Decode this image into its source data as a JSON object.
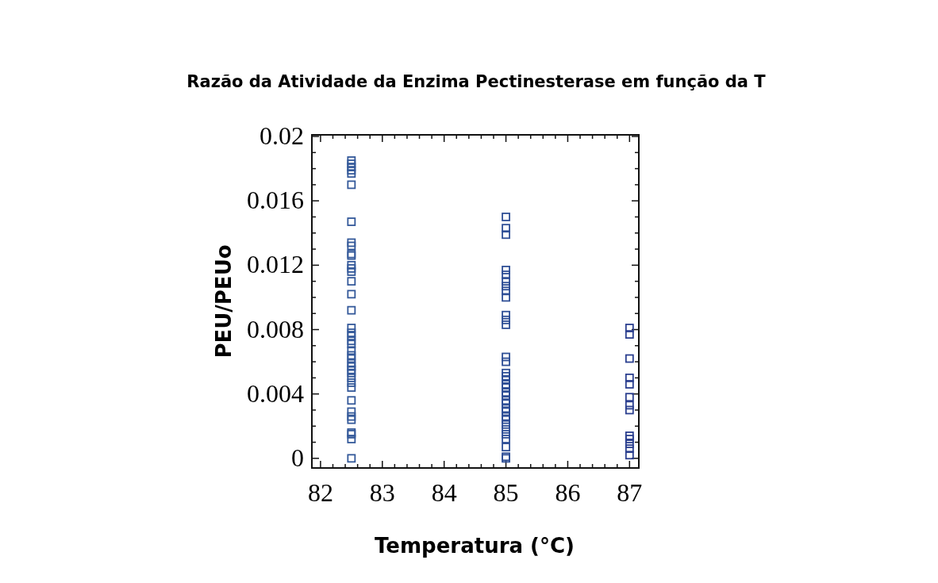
{
  "chart_data": {
    "type": "scatter",
    "title": "Razão da Atividade da Enzima Pectinesterase em função da T",
    "xlabel": "Temperatura (°C)",
    "ylabel": "PEU/PEUo",
    "marker": "square",
    "grid": false,
    "xlim": [
      81.86,
      87.15
    ],
    "ylim": [
      -0.0006,
      0.0201
    ],
    "xticks": [
      82,
      {
        "value": 82.2,
        "label": null
      },
      {
        "value": 82.4,
        "label": null
      },
      {
        "value": 82.6,
        "label": null
      },
      {
        "value": 82.8,
        "label": null
      },
      83,
      {
        "value": 83.2,
        "label": null
      },
      {
        "value": 83.4,
        "label": null
      },
      {
        "value": 83.6,
        "label": null
      },
      {
        "value": 83.8,
        "label": null
      },
      84,
      {
        "value": 84.2,
        "label": null
      },
      {
        "value": 84.4,
        "label": null
      },
      {
        "value": 84.6,
        "label": null
      },
      {
        "value": 84.8,
        "label": null
      },
      85,
      {
        "value": 85.2,
        "label": null
      },
      {
        "value": 85.4,
        "label": null
      },
      {
        "value": 85.6,
        "label": null
      },
      {
        "value": 85.8,
        "label": null
      },
      86,
      {
        "value": 86.2,
        "label": null
      },
      {
        "value": 86.4,
        "label": null
      },
      {
        "value": 86.6,
        "label": null
      },
      {
        "value": 86.8,
        "label": null
      },
      87
    ],
    "yticks": [
      0,
      {
        "value": 0.001,
        "label": null
      },
      {
        "value": 0.002,
        "label": null
      },
      {
        "value": 0.003,
        "label": null
      },
      0.004,
      {
        "value": 0.005,
        "label": null
      },
      {
        "value": 0.006,
        "label": null
      },
      {
        "value": 0.007,
        "label": null
      },
      0.008,
      {
        "value": 0.009,
        "label": null
      },
      {
        "value": 0.01,
        "label": null
      },
      {
        "value": 0.011,
        "label": null
      },
      0.012,
      {
        "value": 0.013,
        "label": null
      },
      {
        "value": 0.014,
        "label": null
      },
      {
        "value": 0.015,
        "label": null
      },
      0.016,
      {
        "value": 0.017,
        "label": null
      },
      {
        "value": 0.018,
        "label": null
      },
      {
        "value": 0.019,
        "label": null
      },
      0.02
    ],
    "series": [
      {
        "color": "#34599a",
        "x": [
          82.5,
          82.5,
          82.5,
          82.5,
          82.5,
          82.5,
          82.5,
          82.5,
          82.5,
          82.5,
          82.5,
          82.5,
          82.5,
          82.5,
          82.5,
          82.5,
          82.5,
          82.5,
          82.5,
          82.5,
          82.5,
          82.5,
          82.5,
          82.5,
          82.5,
          82.5,
          82.5,
          82.5,
          82.5,
          82.5,
          82.5,
          82.5,
          82.5,
          82.5,
          82.5,
          82.5,
          82.5,
          82.5,
          82.5,
          82.5
        ],
        "values": [
          0.0185,
          0.0183,
          0.0181,
          0.0179,
          0.0177,
          0.017,
          0.0147,
          0.0134,
          0.0132,
          0.0127,
          0.0126,
          0.012,
          0.0118,
          0.0116,
          0.011,
          0.0102,
          0.0092,
          0.0081,
          0.0078,
          0.0076,
          0.0073,
          0.0071,
          0.0067,
          0.0064,
          0.0062,
          0.0059,
          0.0057,
          0.0055,
          0.0053,
          0.005,
          0.0047,
          0.0044,
          0.0036,
          0.0029,
          0.0026,
          0.0024,
          0.0016,
          0.0015,
          0.0012,
          0.0
        ]
      },
      {
        "color": "#2f4f96",
        "x": [
          85,
          85,
          85,
          85,
          85,
          85,
          85,
          85,
          85,
          85,
          85,
          85,
          85,
          85,
          85,
          85,
          85,
          85,
          85,
          85,
          85,
          85,
          85,
          85,
          85,
          85,
          85,
          85,
          85,
          85,
          85,
          85,
          85,
          85
        ],
        "values": [
          0.015,
          0.0143,
          0.0139,
          0.0117,
          0.0114,
          0.011,
          0.0107,
          0.0104,
          0.01,
          0.0089,
          0.0086,
          0.0083,
          0.0063,
          0.006,
          0.0053,
          0.0051,
          0.0049,
          0.0046,
          0.0044,
          0.0041,
          0.0039,
          0.0036,
          0.0034,
          0.0031,
          0.0029,
          0.0026,
          0.0024,
          0.0021,
          0.0018,
          0.0015,
          0.0012,
          0.0007,
          0.0001,
          0.0
        ]
      },
      {
        "color": "#2b3f8f",
        "x": [
          87,
          87,
          87,
          87,
          87,
          87,
          87,
          87,
          87,
          87,
          87,
          87,
          87
        ],
        "values": [
          0.0081,
          0.0077,
          0.0062,
          0.005,
          0.0046,
          0.0038,
          0.0033,
          0.003,
          0.0014,
          0.0012,
          0.0009,
          0.0006,
          0.0002
        ]
      }
    ]
  }
}
